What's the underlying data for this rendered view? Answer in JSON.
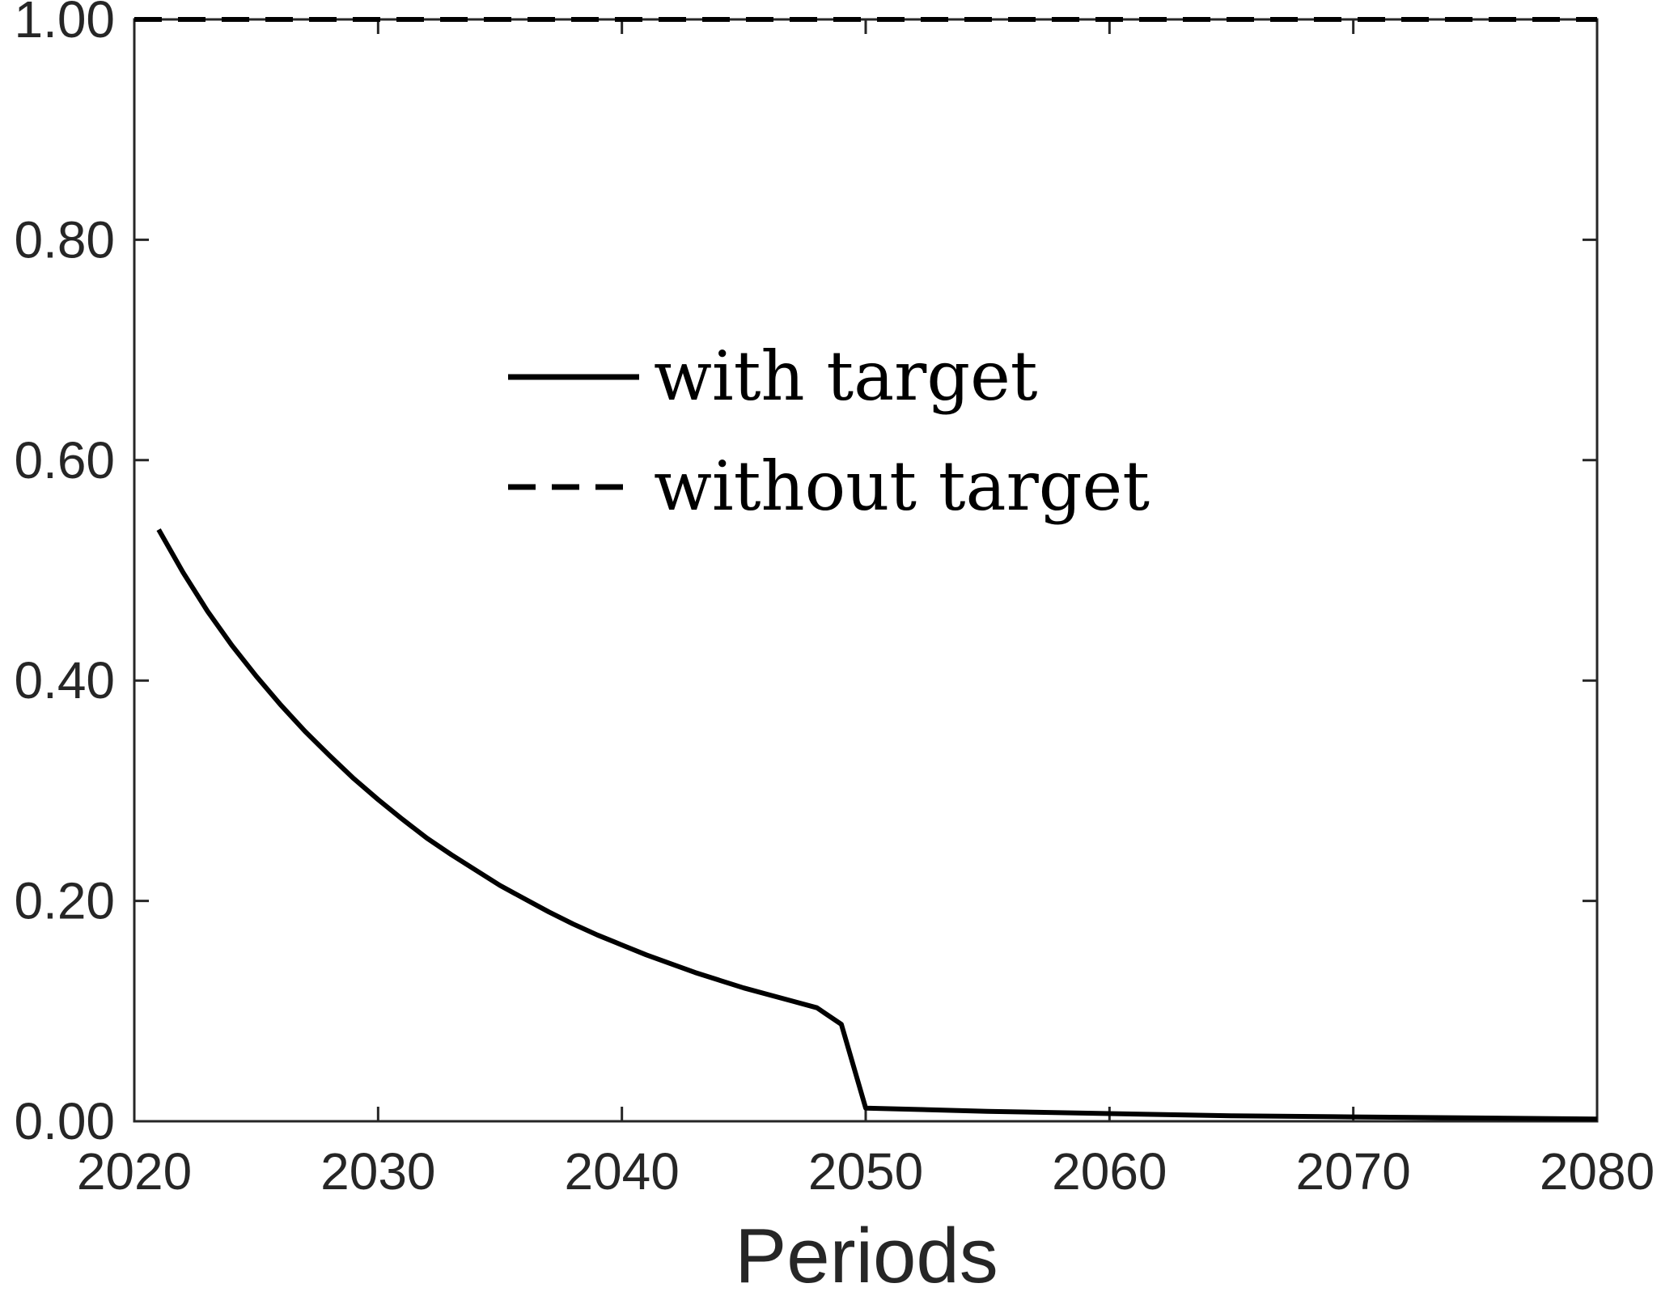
{
  "chart_data": {
    "type": "line",
    "title": "",
    "xlabel": "Periods",
    "ylabel": "",
    "xlim": [
      2020,
      2080
    ],
    "ylim": [
      0,
      1
    ],
    "x_ticks": [
      "2020",
      "2030",
      "2040",
      "2050",
      "2060",
      "2070",
      "2080"
    ],
    "y_ticks": [
      "0.00",
      "0.20",
      "0.40",
      "0.60",
      "0.80",
      "1.00"
    ],
    "grid": false,
    "legend_position": "center-left",
    "series": [
      {
        "name": "with target",
        "style": "solid",
        "color": "#000000",
        "x": [
          2021,
          2022,
          2023,
          2024,
          2025,
          2026,
          2027,
          2028,
          2029,
          2030,
          2031,
          2032,
          2033,
          2034,
          2035,
          2036,
          2037,
          2038,
          2039,
          2040,
          2041,
          2042,
          2043,
          2044,
          2045,
          2046,
          2047,
          2048,
          2049,
          2050,
          2055,
          2060,
          2065,
          2070,
          2075,
          2080
        ],
        "y": [
          0.537,
          0.498,
          0.463,
          0.432,
          0.404,
          0.378,
          0.354,
          0.332,
          0.311,
          0.292,
          0.274,
          0.257,
          0.242,
          0.228,
          0.214,
          0.202,
          0.19,
          0.179,
          0.169,
          0.16,
          0.151,
          0.143,
          0.135,
          0.128,
          0.121,
          0.115,
          0.109,
          0.103,
          0.088,
          0.012,
          0.009,
          0.007,
          0.005,
          0.004,
          0.003,
          0.002
        ]
      },
      {
        "name": "without target",
        "style": "dashed",
        "color": "#000000",
        "x": [
          2020,
          2080
        ],
        "y": [
          1.0,
          1.0
        ]
      }
    ]
  }
}
